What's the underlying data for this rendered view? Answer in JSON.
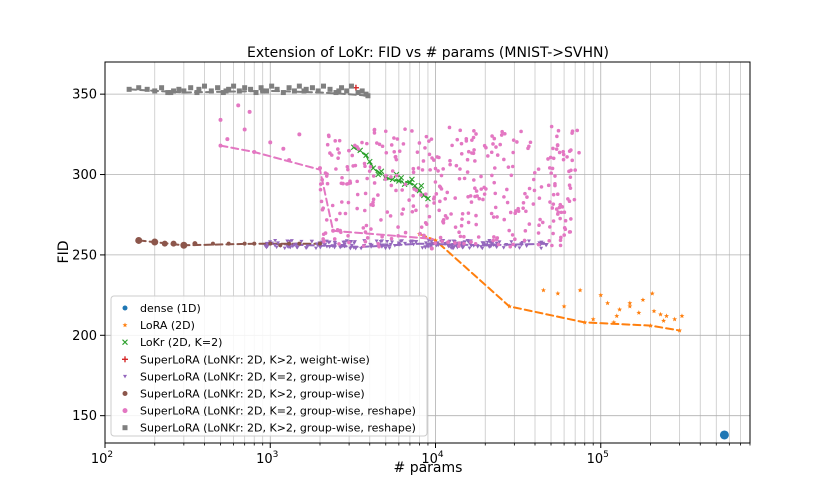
{
  "chart_data": {
    "type": "scatter",
    "title": "Extension of LoKr: FID vs # params (MNIST->SVHN)",
    "xlabel": "# params",
    "ylabel": "FID",
    "xscale": "log",
    "xlim": [
      100,
      800000
    ],
    "ylim": [
      133,
      370
    ],
    "grid": true,
    "legend_position": "lower-left",
    "x_ticks": [
      {
        "value": 100,
        "base": "10",
        "exp": "2"
      },
      {
        "value": 1000,
        "base": "10",
        "exp": "3"
      },
      {
        "value": 10000,
        "base": "10",
        "exp": "4"
      },
      {
        "value": 100000,
        "base": "10",
        "exp": "5"
      }
    ],
    "y_ticks": [
      {
        "value": 150,
        "label": "150"
      },
      {
        "value": 200,
        "label": "200"
      },
      {
        "value": 250,
        "label": "250"
      },
      {
        "value": 300,
        "label": "300"
      },
      {
        "value": 350,
        "label": "350"
      }
    ],
    "series": [
      {
        "name": "dense (1D)",
        "color": "#1f77b4",
        "marker": "circle",
        "points": [
          [
            560000,
            138
          ]
        ],
        "size": 4.5,
        "trend": []
      },
      {
        "name": "LoRA (2D)",
        "color": "#ff7f0e",
        "marker": "star",
        "points": [
          [
            8000,
            263
          ],
          [
            10000,
            259
          ],
          [
            28000,
            218
          ],
          [
            80000,
            208
          ],
          [
            200000,
            206
          ],
          [
            300000,
            203
          ],
          [
            45000,
            228
          ],
          [
            55000,
            226
          ],
          [
            75000,
            228
          ],
          [
            60000,
            218
          ],
          [
            100000,
            225
          ],
          [
            110000,
            220
          ],
          [
            130000,
            216
          ],
          [
            150000,
            218
          ],
          [
            170000,
            214
          ],
          [
            210000,
            215
          ],
          [
            230000,
            213
          ],
          [
            250000,
            212
          ],
          [
            280000,
            210
          ],
          [
            310000,
            212
          ],
          [
            150000,
            220
          ],
          [
            180000,
            222
          ],
          [
            205000,
            226
          ],
          [
            125000,
            212
          ],
          [
            240000,
            209
          ],
          [
            90000,
            210
          ],
          [
            120000,
            208
          ]
        ],
        "trend": [
          [
            8000,
            263
          ],
          [
            10000,
            259
          ],
          [
            28000,
            218
          ],
          [
            80000,
            208
          ],
          [
            200000,
            206
          ],
          [
            300000,
            203
          ]
        ]
      },
      {
        "name": "LoKr (2D, K=2)",
        "color": "#2ca02c",
        "marker": "x",
        "points": [
          [
            3200,
            317
          ],
          [
            3500,
            315
          ],
          [
            3800,
            312
          ],
          [
            4000,
            308
          ],
          [
            4200,
            304
          ],
          [
            4500,
            300
          ],
          [
            5000,
            298
          ],
          [
            5500,
            297
          ],
          [
            6000,
            296
          ],
          [
            6500,
            294
          ],
          [
            7000,
            295
          ],
          [
            7500,
            293
          ],
          [
            8000,
            290
          ],
          [
            8500,
            287
          ],
          [
            9000,
            285
          ],
          [
            4700,
            302
          ],
          [
            5800,
            300
          ],
          [
            7200,
            297
          ],
          [
            8200,
            293
          ],
          [
            6200,
            298
          ]
        ],
        "trend": [
          [
            3200,
            317
          ],
          [
            3800,
            312
          ],
          [
            4200,
            304
          ],
          [
            5000,
            298
          ],
          [
            6000,
            296
          ],
          [
            7000,
            295
          ],
          [
            8000,
            290
          ],
          [
            9000,
            285
          ]
        ]
      },
      {
        "name": "SuperLoRA (LoNKr: 2D, K>2, weight-wise)",
        "color": "#d62728",
        "marker": "plus",
        "points": [
          [
            3300,
            354
          ]
        ],
        "trend": []
      },
      {
        "name": "SuperLoRA (LoNKr: 2D, K=2, group-wise)",
        "color": "#9467bd",
        "marker": "tri",
        "points": [],
        "band": {
          "x_range": [
            900,
            48000
          ],
          "y": 256.5,
          "jitter": 2.5,
          "count": 200
        },
        "trend": [
          [
            900,
            257
          ],
          [
            3600,
            255
          ],
          [
            8000,
            257
          ],
          [
            20000,
            256
          ],
          [
            48000,
            257
          ]
        ]
      },
      {
        "name": "SuperLoRA (LoNKr: 2D, K>2, group-wise)",
        "color": "#8c564b",
        "marker": "circle",
        "points": [
          [
            160,
            259
          ],
          [
            200,
            258
          ],
          [
            230,
            257
          ],
          [
            260,
            257
          ],
          [
            300,
            256
          ],
          [
            350,
            257
          ],
          [
            450,
            257
          ],
          [
            560,
            257
          ],
          [
            700,
            257
          ],
          [
            800,
            257
          ],
          [
            1000,
            257
          ],
          [
            1150,
            256
          ],
          [
            1300,
            257
          ],
          [
            1500,
            257
          ],
          [
            2000,
            257
          ]
        ],
        "sizes": [
          3.5,
          3.5,
          3,
          3,
          3.5,
          2.5,
          2,
          2,
          2,
          2,
          2,
          2,
          2,
          2,
          2
        ],
        "trend": [
          [
            160,
            259
          ],
          [
            300,
            256
          ],
          [
            800,
            257
          ],
          [
            2000,
            257
          ]
        ]
      },
      {
        "name": "SuperLoRA (LoNKr: 2D, K=2, group-wise, reshape)",
        "color": "#e377c2",
        "marker": "circle",
        "points": [
          [
            500,
            318
          ],
          [
            800,
            314
          ],
          [
            2000,
            304
          ],
          [
            2400,
            265
          ],
          [
            8500,
            262
          ],
          [
            9500,
            254
          ],
          [
            500,
            334
          ],
          [
            550,
            322
          ],
          [
            640,
            343
          ],
          [
            700,
            328
          ],
          [
            750,
            339
          ],
          [
            1000,
            320
          ],
          [
            1200,
            316
          ],
          [
            1300,
            309
          ],
          [
            1500,
            325
          ]
        ],
        "cloud": {
          "x_range": [
            2000,
            75000
          ],
          "y_range": [
            255,
            330
          ],
          "count": 380
        },
        "trend": [
          [
            500,
            318
          ],
          [
            800,
            314
          ],
          [
            2000,
            303
          ],
          [
            2400,
            265
          ],
          [
            9500,
            260
          ],
          [
            10000,
            259
          ]
        ]
      },
      {
        "name": "SuperLoRA (LoNKr: 2D, K>2, group-wise, reshape)",
        "color": "#7f7f7f",
        "marker": "square",
        "points": [
          [
            140,
            353
          ],
          [
            160,
            354
          ],
          [
            180,
            353
          ],
          [
            200,
            352
          ],
          [
            220,
            354
          ],
          [
            240,
            351
          ],
          [
            260,
            352
          ],
          [
            280,
            353
          ],
          [
            300,
            352
          ],
          [
            330,
            354
          ],
          [
            360,
            351
          ],
          [
            400,
            355
          ],
          [
            440,
            352
          ],
          [
            480,
            354
          ],
          [
            520,
            351
          ],
          [
            560,
            353
          ],
          [
            600,
            355
          ],
          [
            650,
            352
          ],
          [
            700,
            354
          ],
          [
            760,
            353
          ],
          [
            820,
            351
          ],
          [
            880,
            354
          ],
          [
            950,
            352
          ],
          [
            1020,
            355
          ],
          [
            1100,
            353
          ],
          [
            1200,
            351
          ],
          [
            1300,
            354
          ],
          [
            1400,
            352
          ],
          [
            1500,
            355
          ],
          [
            1650,
            353
          ],
          [
            1800,
            354
          ],
          [
            1950,
            352
          ],
          [
            2100,
            355
          ],
          [
            2300,
            353
          ],
          [
            2500,
            351
          ],
          [
            2700,
            354
          ],
          [
            2900,
            352
          ],
          [
            3100,
            355
          ],
          [
            3400,
            351
          ],
          [
            3800,
            350
          ],
          [
            250,
            351
          ],
          [
            370,
            353
          ],
          [
            540,
            352
          ],
          [
            900,
            352
          ],
          [
            1600,
            352
          ],
          [
            2600,
            352
          ],
          [
            3600,
            352
          ],
          [
            3900,
            349
          ]
        ],
        "trend": [
          [
            140,
            353
          ],
          [
            300,
            351
          ],
          [
            1000,
            352
          ],
          [
            2000,
            351
          ],
          [
            3000,
            350
          ],
          [
            4000,
            349
          ]
        ]
      }
    ]
  }
}
